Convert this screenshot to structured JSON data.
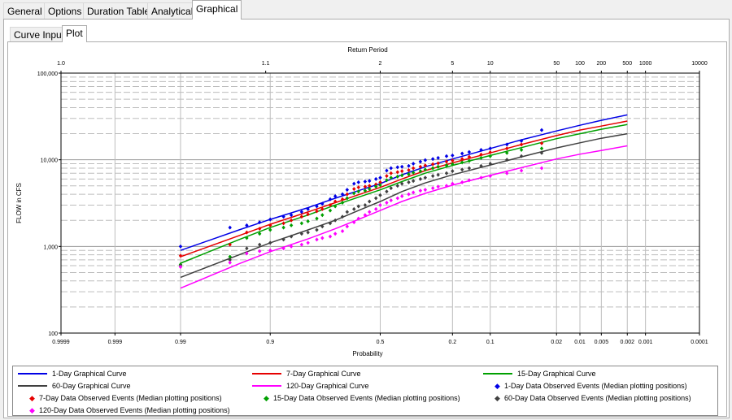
{
  "tabs": [
    "General",
    "Options",
    "Duration Table",
    "Analytical",
    "Graphical"
  ],
  "active_tab": "Graphical",
  "subtabs": [
    "Curve Input",
    "Plot"
  ],
  "active_subtab": "Plot",
  "colors": {
    "1-Day": "#0000e6",
    "7-Day": "#e60000",
    "15-Day": "#00a000",
    "60-Day": "#404040",
    "120-Day": "#ff00ff"
  },
  "chart_data": {
    "type": "line",
    "x_scale": "normal-probability",
    "y_scale": "log",
    "title": "",
    "top_axis_label": "Return Period",
    "top_ticks": [
      "1.0",
      "1.1",
      "2",
      "5",
      "10",
      "50",
      "100",
      "200",
      "500",
      "1000",
      "10000"
    ],
    "top_tick_probs": [
      0.9999,
      0.909,
      0.5,
      0.2,
      0.1,
      0.02,
      0.01,
      0.005,
      0.002,
      0.001,
      0.0001
    ],
    "xlabel": "Probability",
    "x_ticks": [
      "0.9999",
      "0.999",
      "0.99",
      "0.9",
      "0.5",
      "0.2",
      "0.1",
      "0.02",
      "0.01",
      "0.005",
      "0.002",
      "0.001",
      "0.0001"
    ],
    "x_tick_probs": [
      0.9999,
      0.999,
      0.99,
      0.9,
      0.5,
      0.2,
      0.1,
      0.02,
      0.01,
      0.005,
      0.002,
      0.001,
      0.0001
    ],
    "ylabel": "FLOW in CFS",
    "y_ticks": [
      "100",
      "1,000",
      "10,000",
      "100,000"
    ],
    "ylim": [
      100,
      100000
    ],
    "grid": true,
    "legend_position": "bottom",
    "curves": [
      {
        "name": "1-Day Graphical Curve",
        "key": "1-Day",
        "x": [
          0.99,
          0.95,
          0.9,
          0.8,
          0.7,
          0.6,
          0.5,
          0.4,
          0.3,
          0.2,
          0.1,
          0.05,
          0.02,
          0.01,
          0.005,
          0.002
        ],
        "y": [
          900,
          1550,
          2050,
          2800,
          3600,
          4400,
          5300,
          6700,
          8300,
          10200,
          13500,
          17000,
          21500,
          25000,
          28500,
          33000
        ]
      },
      {
        "name": "7-Day Graphical Curve",
        "key": "7-Day",
        "x": [
          0.99,
          0.95,
          0.9,
          0.8,
          0.7,
          0.6,
          0.5,
          0.4,
          0.3,
          0.2,
          0.1,
          0.05,
          0.02,
          0.01,
          0.005,
          0.002
        ],
        "y": [
          760,
          1330,
          1800,
          2500,
          3200,
          3950,
          4800,
          6000,
          7500,
          9200,
          12000,
          15000,
          19000,
          22000,
          24500,
          28000
        ]
      },
      {
        "name": "15-Day Graphical Curve",
        "key": "15-Day",
        "x": [
          0.99,
          0.95,
          0.9,
          0.8,
          0.7,
          0.6,
          0.5,
          0.4,
          0.3,
          0.2,
          0.1,
          0.05,
          0.02,
          0.01,
          0.005,
          0.002
        ],
        "y": [
          640,
          1200,
          1650,
          2300,
          3000,
          3700,
          4500,
          5600,
          7000,
          8600,
          11200,
          13800,
          17500,
          20000,
          22500,
          25500
        ]
      },
      {
        "name": "60-Day Graphical Curve",
        "key": "60-Day",
        "x": [
          0.99,
          0.95,
          0.9,
          0.8,
          0.7,
          0.6,
          0.5,
          0.4,
          0.3,
          0.2,
          0.1,
          0.05,
          0.02,
          0.01,
          0.005,
          0.002
        ],
        "y": [
          440,
          800,
          1100,
          1550,
          2000,
          2600,
          3300,
          4300,
          5400,
          6700,
          8700,
          10800,
          13700,
          15700,
          17700,
          20000
        ]
      },
      {
        "name": "120-Day Graphical Curve",
        "key": "120-Day",
        "x": [
          0.99,
          0.95,
          0.9,
          0.8,
          0.7,
          0.6,
          0.5,
          0.4,
          0.3,
          0.2,
          0.1,
          0.05,
          0.02,
          0.01,
          0.005,
          0.002
        ],
        "y": [
          330,
          630,
          870,
          1220,
          1600,
          2050,
          2600,
          3300,
          4100,
          5100,
          6600,
          8100,
          10200,
          11600,
          12800,
          14500
        ]
      }
    ],
    "observed": [
      {
        "name": "1-Day Data Observed Events (Median plotting positions)",
        "key": "1-Day",
        "x": [
          0.99,
          0.96,
          0.94,
          0.92,
          0.9,
          0.87,
          0.85,
          0.82,
          0.8,
          0.77,
          0.75,
          0.72,
          0.7,
          0.67,
          0.65,
          0.62,
          0.6,
          0.57,
          0.55,
          0.52,
          0.5,
          0.47,
          0.45,
          0.42,
          0.4,
          0.37,
          0.35,
          0.32,
          0.3,
          0.27,
          0.25,
          0.22,
          0.2,
          0.17,
          0.15,
          0.12,
          0.1,
          0.07,
          0.05,
          0.03
        ],
        "y": [
          1000,
          1650,
          1750,
          1900,
          2050,
          2200,
          2300,
          2500,
          2700,
          2900,
          3100,
          3500,
          3800,
          4000,
          4500,
          5300,
          5500,
          5600,
          5700,
          6000,
          6200,
          7500,
          8000,
          8200,
          8300,
          8500,
          9000,
          9500,
          9900,
          10200,
          10500,
          11000,
          11200,
          11800,
          12300,
          13000,
          13500,
          15000,
          16500,
          22000
        ]
      },
      {
        "name": "7-Day Data Observed Events (Median plotting positions)",
        "key": "7-Day",
        "x": [
          0.99,
          0.96,
          0.94,
          0.92,
          0.9,
          0.87,
          0.85,
          0.82,
          0.8,
          0.77,
          0.75,
          0.72,
          0.7,
          0.67,
          0.65,
          0.62,
          0.6,
          0.57,
          0.55,
          0.52,
          0.5,
          0.47,
          0.45,
          0.42,
          0.4,
          0.37,
          0.35,
          0.32,
          0.3,
          0.27,
          0.25,
          0.22,
          0.2,
          0.17,
          0.15,
          0.12,
          0.1,
          0.07,
          0.05,
          0.03
        ],
        "y": [
          780,
          1050,
          1450,
          1600,
          1750,
          1850,
          2000,
          2200,
          2350,
          2550,
          2700,
          3000,
          3300,
          3500,
          4000,
          4600,
          4800,
          4900,
          5000,
          5200,
          5500,
          6500,
          7000,
          7200,
          7400,
          7600,
          8000,
          8300,
          8600,
          8900,
          9100,
          9500,
          9800,
          10200,
          10800,
          11500,
          12200,
          13500,
          15000,
          15500
        ]
      },
      {
        "name": "15-Day Data Observed Events (Median plotting positions)",
        "key": "15-Day",
        "x": [
          0.99,
          0.96,
          0.94,
          0.92,
          0.9,
          0.87,
          0.85,
          0.82,
          0.8,
          0.77,
          0.75,
          0.72,
          0.7,
          0.67,
          0.65,
          0.62,
          0.6,
          0.57,
          0.55,
          0.52,
          0.5,
          0.47,
          0.45,
          0.42,
          0.4,
          0.37,
          0.35,
          0.32,
          0.3,
          0.27,
          0.25,
          0.22,
          0.2,
          0.17,
          0.15,
          0.12,
          0.1,
          0.07,
          0.05,
          0.03
        ],
        "y": [
          620,
          760,
          1250,
          1400,
          1550,
          1650,
          1750,
          1850,
          1950,
          2100,
          2300,
          2600,
          2900,
          3200,
          3600,
          4100,
          4300,
          4400,
          4600,
          4900,
          5100,
          5800,
          6200,
          6400,
          6600,
          6800,
          7100,
          7400,
          7700,
          8000,
          8300,
          8600,
          8900,
          9300,
          9700,
          10500,
          11000,
          12000,
          13000,
          13500
        ]
      },
      {
        "name": "60-Day Data Observed Events (Median plotting positions)",
        "key": "60-Day",
        "x": [
          0.99,
          0.96,
          0.94,
          0.92,
          0.9,
          0.87,
          0.85,
          0.82,
          0.8,
          0.77,
          0.75,
          0.72,
          0.7,
          0.67,
          0.65,
          0.62,
          0.6,
          0.57,
          0.55,
          0.52,
          0.5,
          0.47,
          0.45,
          0.42,
          0.4,
          0.37,
          0.35,
          0.32,
          0.3,
          0.27,
          0.25,
          0.22,
          0.2,
          0.17,
          0.15,
          0.12,
          0.1,
          0.07,
          0.05,
          0.03
        ],
        "y": [
          600,
          700,
          950,
          1050,
          1100,
          1200,
          1300,
          1400,
          1450,
          1550,
          1700,
          1850,
          2000,
          2200,
          2500,
          2700,
          2900,
          3000,
          3300,
          3600,
          3900,
          4300,
          4700,
          5000,
          5300,
          5500,
          5700,
          6000,
          6200,
          6500,
          6700,
          7000,
          7400,
          7700,
          8000,
          8500,
          9000,
          10000,
          11000,
          12000
        ]
      },
      {
        "name": "120-Day Data Observed Events (Median plotting positions)",
        "key": "120-Day",
        "x": [
          0.99,
          0.96,
          0.94,
          0.92,
          0.9,
          0.87,
          0.85,
          0.82,
          0.8,
          0.77,
          0.75,
          0.72,
          0.7,
          0.67,
          0.65,
          0.62,
          0.6,
          0.57,
          0.55,
          0.52,
          0.5,
          0.47,
          0.45,
          0.42,
          0.4,
          0.37,
          0.35,
          0.32,
          0.3,
          0.27,
          0.25,
          0.22,
          0.2,
          0.17,
          0.15,
          0.12,
          0.1,
          0.07,
          0.05,
          0.03
        ],
        "y": [
          580,
          650,
          830,
          880,
          900,
          950,
          1000,
          1050,
          1100,
          1200,
          1250,
          1300,
          1400,
          1500,
          1700,
          1900,
          2100,
          2300,
          2500,
          2700,
          3000,
          3200,
          3400,
          3600,
          3800,
          4000,
          4200,
          4400,
          4500,
          4700,
          4900,
          5000,
          5300,
          5500,
          5800,
          6200,
          6500,
          7000,
          7500,
          8000
        ]
      }
    ]
  }
}
